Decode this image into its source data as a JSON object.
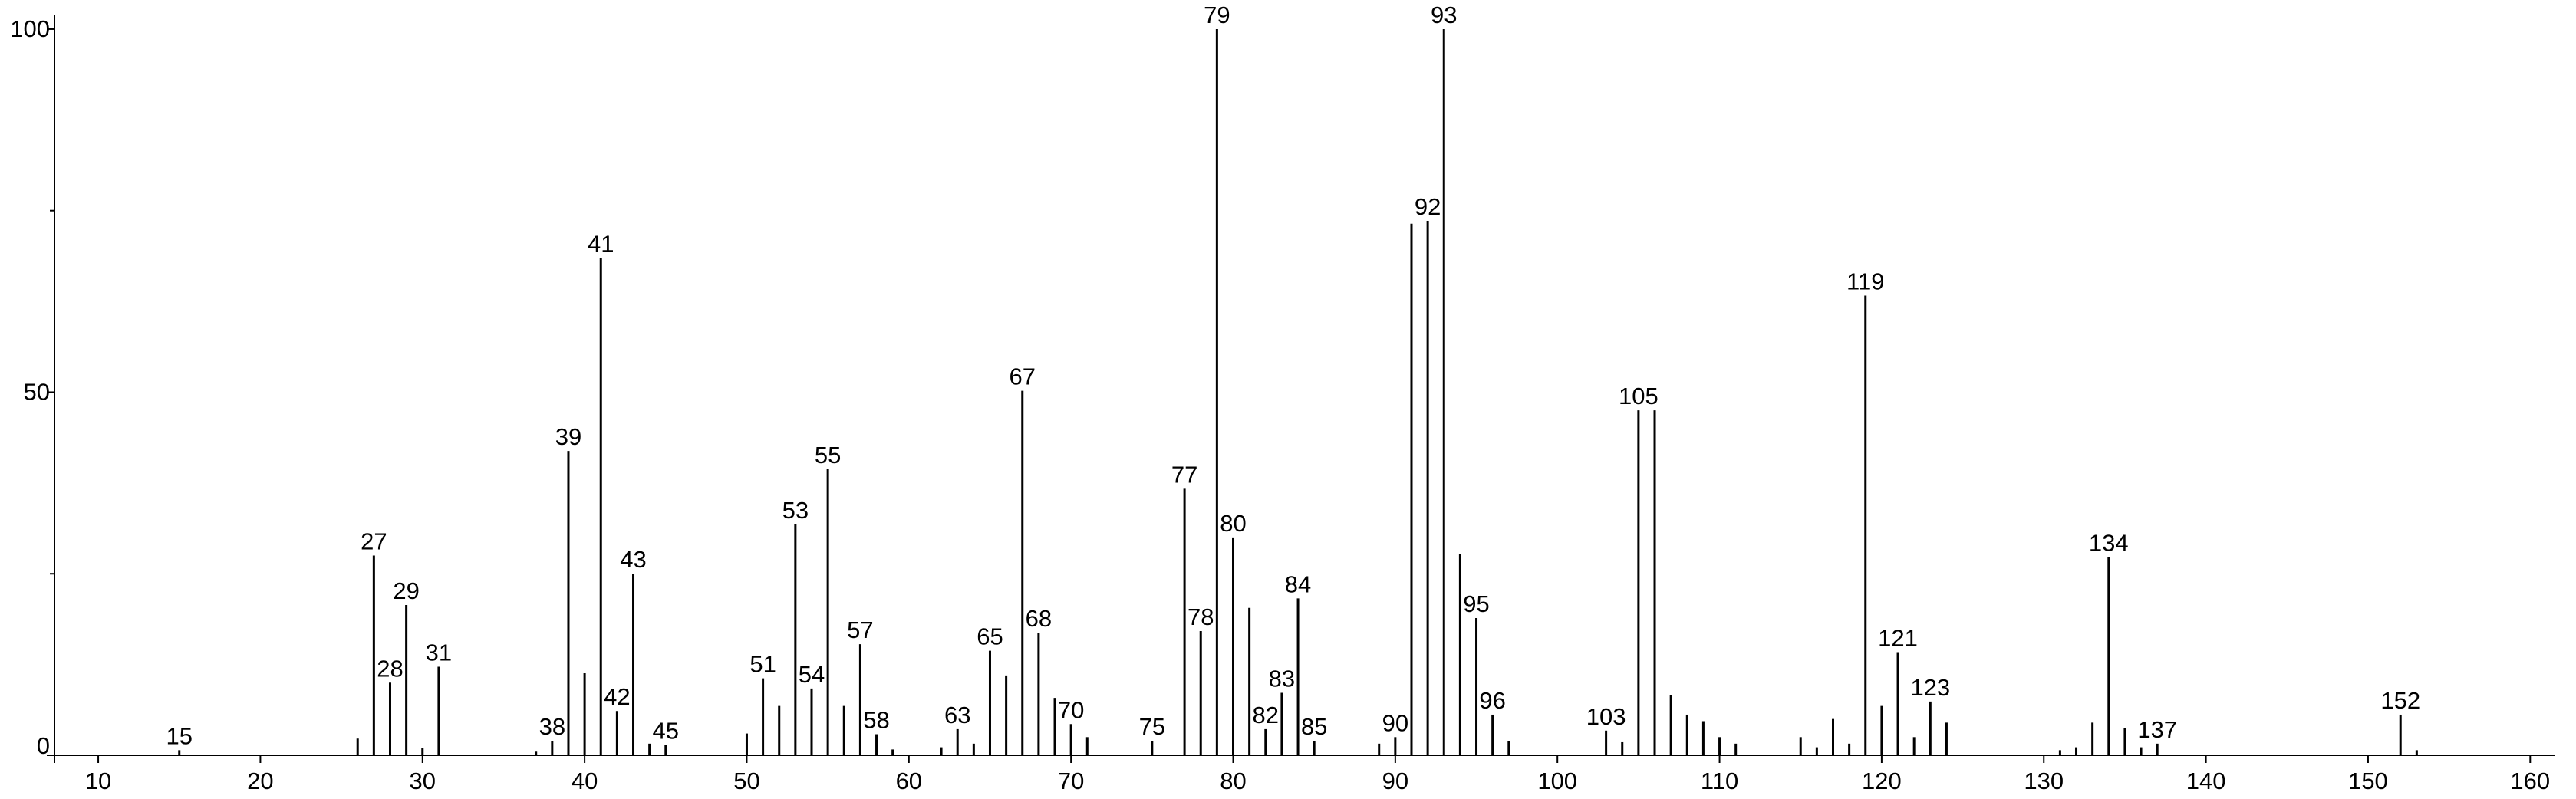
{
  "chart_data": {
    "type": "stem",
    "color": "#000000",
    "x": [
      15,
      26,
      27,
      28,
      29,
      30,
      31,
      37,
      38,
      39,
      40,
      41,
      42,
      43,
      44,
      45,
      50,
      51,
      52,
      53,
      54,
      55,
      56,
      57,
      58,
      59,
      62,
      63,
      64,
      65,
      66,
      67,
      68,
      69,
      70,
      71,
      75,
      77,
      78,
      79,
      80,
      81,
      82,
      83,
      84,
      85,
      89,
      90,
      91,
      92,
      93,
      94,
      95,
      96,
      97,
      103,
      104,
      105,
      106,
      107,
      108,
      109,
      110,
      111,
      115,
      116,
      117,
      118,
      119,
      120,
      121,
      122,
      123,
      124,
      131,
      132,
      133,
      134,
      135,
      136,
      137,
      152,
      153
    ],
    "values": [
      0.7,
      2.3,
      27.5,
      10,
      20.7,
      1,
      12.2,
      0.5,
      2,
      41.9,
      11.3,
      68.5,
      6.1,
      25,
      1.6,
      1.4,
      3,
      10.6,
      6.8,
      31.8,
      9.2,
      39.4,
      6.8,
      15.3,
      2.9,
      0.8,
      1.1,
      3.6,
      1.6,
      14.4,
      11,
      50.2,
      16.9,
      7.9,
      4.3,
      2.5,
      2,
      36.7,
      17.1,
      100,
      30,
      20.3,
      3.6,
      8.6,
      21.6,
      2,
      1.6,
      2.5,
      73.2,
      73.6,
      100,
      27.7,
      18.9,
      5.6,
      2,
      3.4,
      1.8,
      47.5,
      47.5,
      8.3,
      5.6,
      4.7,
      2.5,
      1.6,
      2.5,
      1.1,
      5,
      1.6,
      63.3,
      6.8,
      14.2,
      2.5,
      7.4,
      4.5,
      0.7,
      1.1,
      4.5,
      27.3,
      3.8,
      1.1,
      1.6,
      5.6,
      0.7
    ],
    "peak_labels": [
      15,
      null,
      27,
      28,
      29,
      null,
      31,
      null,
      38,
      39,
      null,
      41,
      42,
      43,
      null,
      45,
      null,
      51,
      null,
      53,
      54,
      55,
      null,
      57,
      58,
      null,
      null,
      63,
      null,
      65,
      null,
      67,
      68,
      null,
      70,
      null,
      75,
      77,
      78,
      79,
      80,
      null,
      82,
      83,
      84,
      85,
      null,
      90,
      null,
      92,
      93,
      null,
      95,
      96,
      null,
      103,
      null,
      105,
      null,
      null,
      null,
      null,
      null,
      null,
      null,
      null,
      null,
      null,
      119,
      null,
      121,
      null,
      123,
      null,
      null,
      null,
      null,
      134,
      null,
      null,
      137,
      152,
      null
    ],
    "xlim": [
      7.3,
      161.5
    ],
    "ylim": [
      0,
      102
    ],
    "xticks": [
      10,
      20,
      30,
      40,
      50,
      60,
      70,
      80,
      90,
      100,
      110,
      120,
      130,
      140,
      150,
      160
    ],
    "yticks": [
      0,
      50,
      100
    ],
    "yminorticks": [
      25,
      75
    ]
  }
}
